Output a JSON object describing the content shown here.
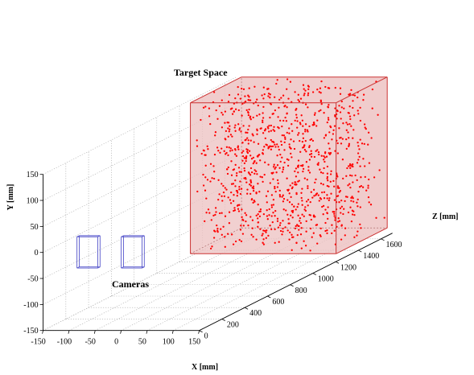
{
  "chart_data": {
    "type": "scatter",
    "projection": "3d",
    "title": "",
    "xlabel": "X [mm]",
    "ylabel": "Y [mm]",
    "zlabel": "Z [mm]",
    "xlim": [
      -150,
      150
    ],
    "ylim": [
      -150,
      150
    ],
    "zlim": [
      0,
      1700
    ],
    "xticks": [
      "-150",
      "-100",
      "-50",
      "0",
      "50",
      "100",
      "150"
    ],
    "yticks": [
      "-150",
      "-100",
      "-50",
      "0",
      "50",
      "100",
      "150"
    ],
    "zticks": [
      "0",
      "200",
      "400",
      "600",
      "800",
      "1000",
      "1200",
      "1400",
      "1600"
    ],
    "grid": true,
    "annotations": [
      {
        "text": "Target Space",
        "points_to": "target-volume"
      },
      {
        "text": "Cameras",
        "points_to": "camera-boxes"
      }
    ],
    "target_space": {
      "x_range": [
        -140,
        140
      ],
      "y_range": [
        -140,
        150
      ],
      "z_range": [
        1250,
        1700
      ],
      "fill_color": "#eec3c3",
      "edge_color": "#cc3333",
      "point_color": "#ff0000",
      "num_points": 1000,
      "distribution": "uniform random"
    },
    "cameras": [
      {
        "center": [
          -65,
          0,
          10
        ],
        "half_size": [
          20,
          30,
          10
        ],
        "edge_color": "#5555cc"
      },
      {
        "center": [
          20,
          0,
          10
        ],
        "half_size": [
          20,
          30,
          10
        ],
        "edge_color": "#5555cc"
      }
    ]
  }
}
